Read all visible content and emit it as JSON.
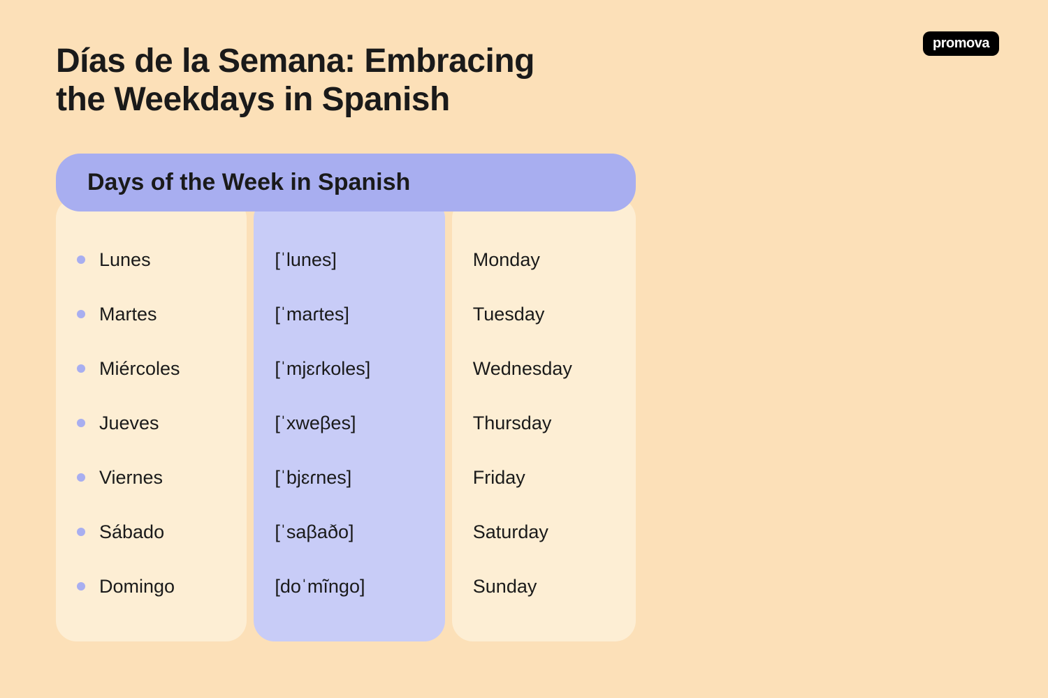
{
  "logo": "promova",
  "title": "Días de la Semana: Embracing the Weekdays in Spanish",
  "section_header": "Days of the Week in Spanish",
  "colors": {
    "page_bg": "#fce0b8",
    "header_bg": "#a8aef0",
    "column_light": "#fdeed4",
    "column_purple": "#c8ccf7",
    "bullet": "#a8aef0",
    "text": "#1a1a1a",
    "logo_bg": "#000000",
    "logo_text": "#ffffff"
  },
  "typography": {
    "title_fontsize": 48,
    "title_weight": 800,
    "section_header_fontsize": 34,
    "section_header_weight": 800,
    "cell_fontsize": 27
  },
  "table": {
    "type": "table",
    "columns": [
      "spanish",
      "phonetic",
      "english"
    ],
    "rows": [
      {
        "spanish": "Lunes",
        "phonetic": "[ˈlunes]",
        "english": "Monday"
      },
      {
        "spanish": "Martes",
        "phonetic": "[ˈmaɾtes]",
        "english": "Tuesday"
      },
      {
        "spanish": "Miércoles",
        "phonetic": "[ˈmjɛɾkoles]",
        "english": "Wednesday"
      },
      {
        "spanish": "Jueves",
        "phonetic": "[ˈxweβes]",
        "english": "Thursday"
      },
      {
        "spanish": "Viernes",
        "phonetic": "[ˈbjɛɾnes]",
        "english": "Friday"
      },
      {
        "spanish": "Sábado",
        "phonetic": "[ˈsaβaðo]",
        "english": "Saturday"
      },
      {
        "spanish": "Domingo",
        "phonetic": "[doˈmĩngo]",
        "english": "Sunday"
      }
    ]
  }
}
